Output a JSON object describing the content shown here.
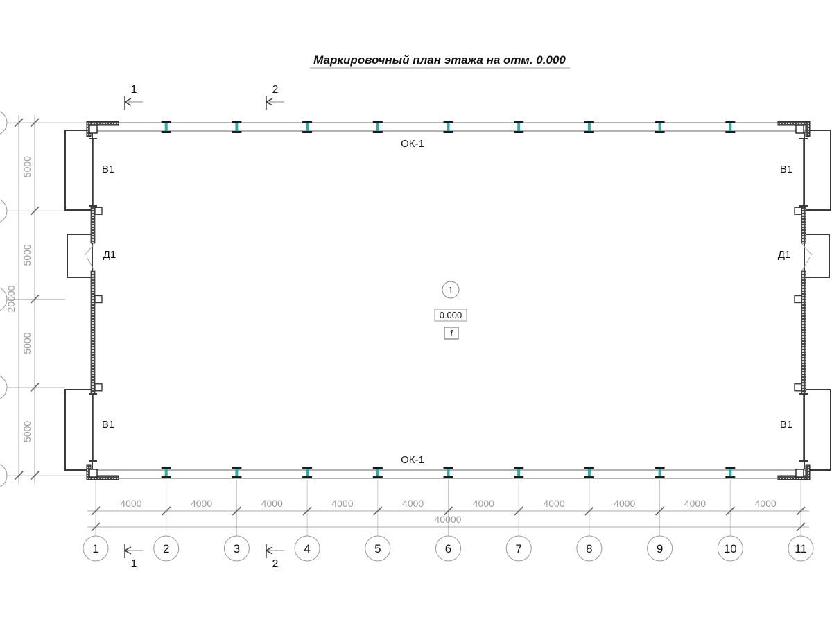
{
  "drawing": {
    "title": "Маркировочный план этажа на отм. 0.000",
    "room_number": "1",
    "elevation_mark": "0.000",
    "floor_zone_mark": "1",
    "window_mark": "ОК-1",
    "gate_mark": "В1",
    "door_mark": "Д1"
  },
  "grid": {
    "column_bubbles": [
      "1",
      "2",
      "3",
      "4",
      "5",
      "6",
      "7",
      "8",
      "9",
      "10",
      "11"
    ],
    "row_count": 5,
    "bay_width_label": "4000",
    "overall_width_label": "40000",
    "bay_height_label": "5000",
    "overall_height_label": "20000"
  },
  "section_marks": [
    "1",
    "2"
  ],
  "colors": {
    "background": "#ffffff",
    "wall": "#b3b3b3",
    "grid_line": "#c9c9c9",
    "dim_line": "#ababab",
    "tick": "#666666",
    "dim_text": "#9c9c9c",
    "beam_web": "#2fa8a8",
    "beam_flange": "#1a1a1a",
    "dark": "#3a3a3a",
    "panel_fill": "#4a4a4a",
    "panel_dot": "#d8d8d8",
    "bubble_stroke": "#999999",
    "swing": "#a9a9a9",
    "underline": "#b0b0b0"
  }
}
